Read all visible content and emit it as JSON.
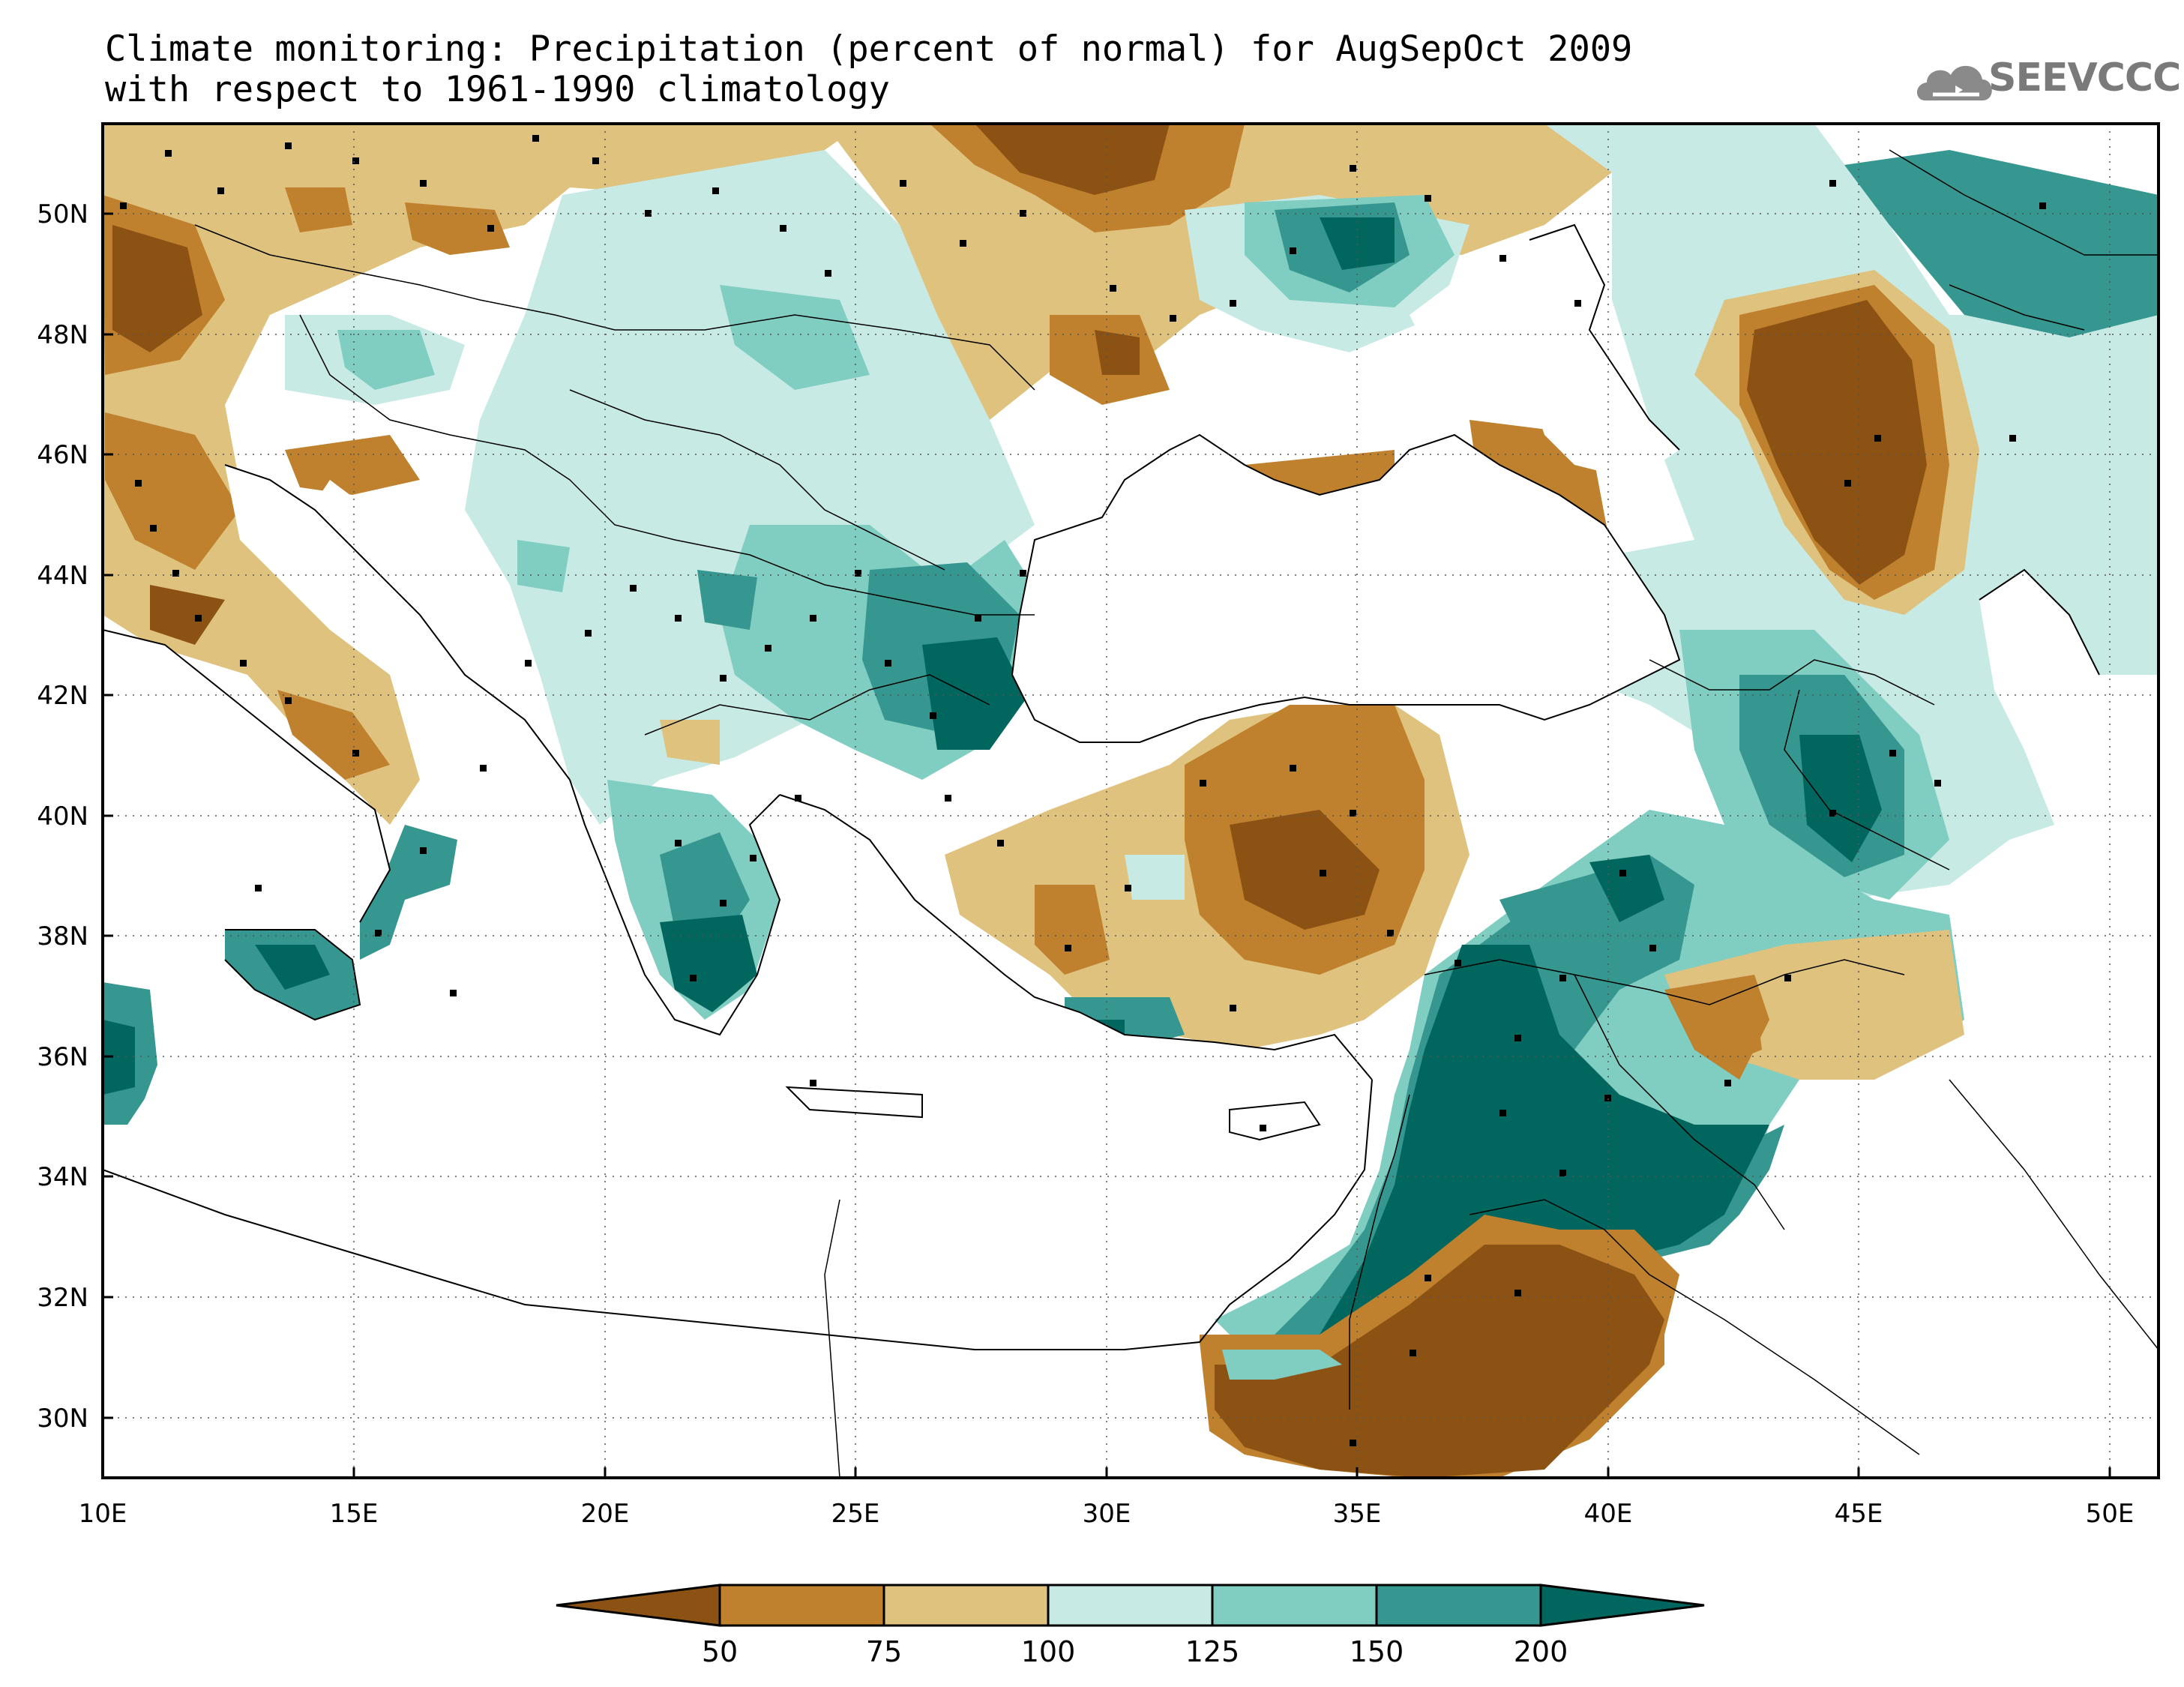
{
  "title_line1": "Climate monitoring: Precipitation (percent of normal) for AugSepOct 2009",
  "title_line2": "with respect to 1961-1990 climatology",
  "logo_text": "SEEVCCC",
  "lon_ticks": [
    "10E",
    "15E",
    "20E",
    "25E",
    "30E",
    "35E",
    "40E",
    "45E",
    "50E"
  ],
  "lat_ticks": [
    "30N",
    "32N",
    "34N",
    "36N",
    "38N",
    "40N",
    "42N",
    "44N",
    "46N",
    "48N",
    "50N"
  ],
  "colorbar": {
    "labels": [
      "50",
      "75",
      "100",
      "125",
      "150",
      "200"
    ],
    "colors": [
      "#8c5213",
      "#bf812d",
      "#dfc27d",
      "#c7eae5",
      "#80cdc1",
      "#35978f",
      "#01665e"
    ]
  },
  "map": {
    "lon_range": [
      10,
      51
    ],
    "lat_range": [
      29,
      51.5
    ],
    "sea_color": "#ffffff",
    "border_color": "#000000"
  }
}
